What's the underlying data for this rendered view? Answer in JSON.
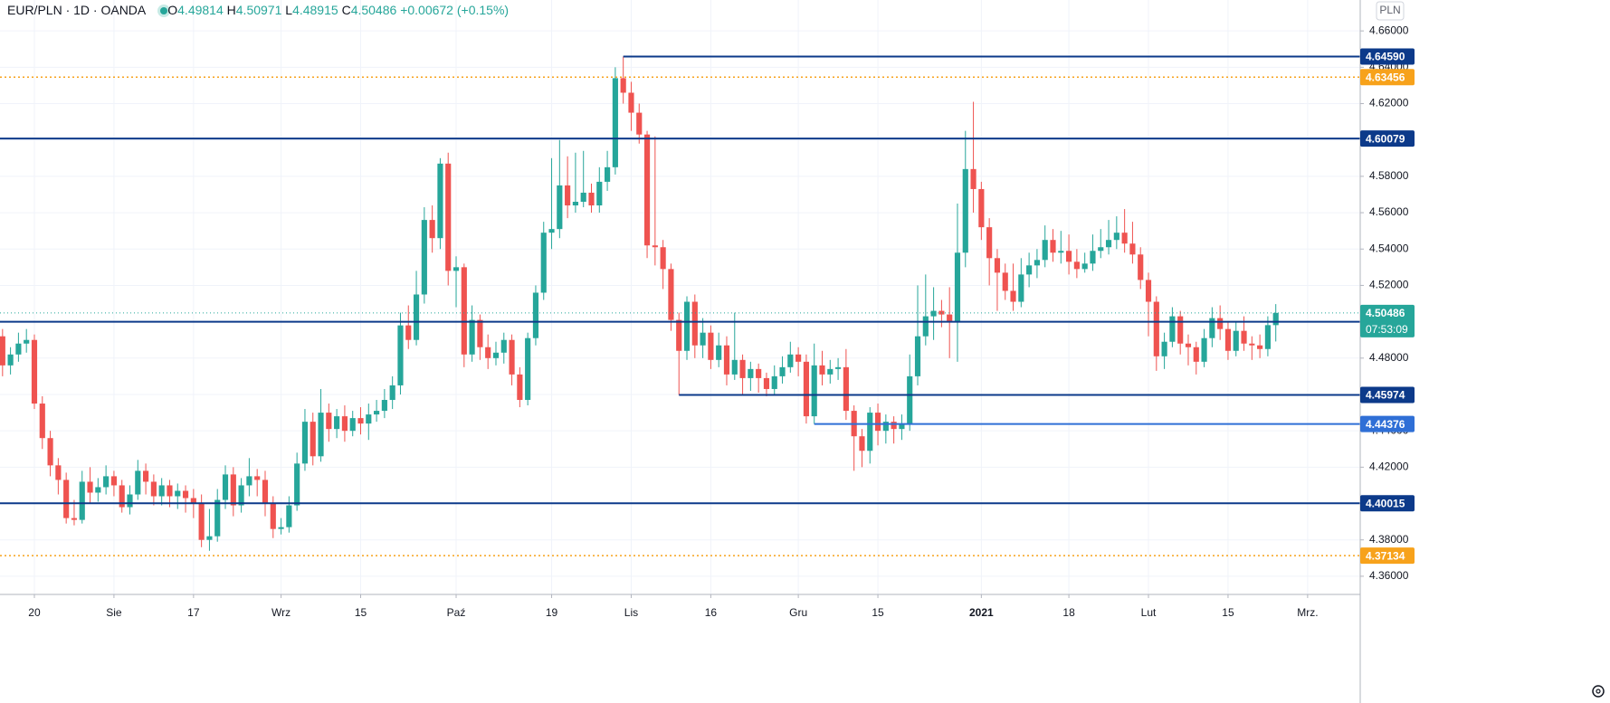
{
  "header": {
    "title": "EUR/PLN · 1D · OANDA",
    "fields": [
      {
        "key": "O",
        "value": 4.49814
      },
      {
        "key": "H",
        "value": 4.50971
      },
      {
        "key": "L",
        "value": 4.48915
      },
      {
        "key": "C",
        "value": 4.50486
      }
    ],
    "change": "+0.00672",
    "change_pct": "(+0.15%)"
  },
  "chart_data": {
    "type": "candlestick",
    "currency": "PLN",
    "up_color": "#26a69a",
    "down_color": "#ef5350",
    "grid": true,
    "xlim": [
      -0.32,
      170.61
    ],
    "ylim": [
      4.35,
      4.677
    ],
    "xticks": [
      {
        "value": 4,
        "label": "20"
      },
      {
        "value": 14,
        "label": "Sie"
      },
      {
        "value": 24,
        "label": "17"
      },
      {
        "value": 35,
        "label": "Wrz"
      },
      {
        "value": 45,
        "label": "15"
      },
      {
        "value": 57,
        "label": "Paź"
      },
      {
        "value": 69,
        "label": "19"
      },
      {
        "value": 79,
        "label": "Lis"
      },
      {
        "value": 89,
        "label": "16"
      },
      {
        "value": 100,
        "label": "Gru"
      },
      {
        "value": 110,
        "label": "15"
      },
      {
        "value": 123,
        "label": "2021",
        "bold": true
      },
      {
        "value": 134,
        "label": "18"
      },
      {
        "value": 144,
        "label": "Lut"
      },
      {
        "value": 154,
        "label": "15"
      },
      {
        "value": 164,
        "label": "Mrz."
      }
    ],
    "yticks": [
      {
        "value": 4.36,
        "label": "4.36000"
      },
      {
        "value": 4.38,
        "label": "4.38000"
      },
      {
        "value": 4.4,
        "label": "4.40000"
      },
      {
        "value": 4.42,
        "label": "4.42000"
      },
      {
        "value": 4.44,
        "label": "4.44000"
      },
      {
        "value": 4.46,
        "label": "4.46000"
      },
      {
        "value": 4.48,
        "label": "4.48000"
      },
      {
        "value": 4.5,
        "label": "4.50000"
      },
      {
        "value": 4.52,
        "label": "4.52000"
      },
      {
        "value": 4.54,
        "label": "4.54000"
      },
      {
        "value": 4.56,
        "label": "4.56000"
      },
      {
        "value": 4.58,
        "label": "4.58000"
      },
      {
        "value": 4.6,
        "label": "4.60000"
      },
      {
        "value": 4.62,
        "label": "4.62000"
      },
      {
        "value": 4.64,
        "label": "4.64000"
      },
      {
        "value": 4.66,
        "label": "4.66000"
      }
    ],
    "levels": [
      {
        "value": 4.6459,
        "label": "4.64590",
        "color": "#0c3a8a",
        "dash": false,
        "from": 78
      },
      {
        "value": 4.63456,
        "label": "4.63456",
        "color": "#f7a21b",
        "dash": true
      },
      {
        "value": 4.60079,
        "label": "4.60079",
        "color": "#0c3a8a",
        "dash": false
      },
      {
        "value": 4.5,
        "label": "4.50000",
        "color": "#0c3a8a",
        "dash": false
      },
      {
        "value": 4.45974,
        "label": "4.45974",
        "color": "#0c3a8a",
        "dash": false,
        "from": 85
      },
      {
        "value": 4.44376,
        "label": "4.44376",
        "color": "#2f6fd6",
        "dash": false,
        "from": 102
      },
      {
        "value": 4.40015,
        "label": "4.40015",
        "color": "#0c3a8a",
        "dash": false
      },
      {
        "value": 4.37134,
        "label": "4.37134",
        "color": "#f7a21b",
        "dash": true
      }
    ],
    "last": {
      "value": 4.50486,
      "label": "4.50486",
      "countdown": "07:53:09",
      "color": "#26a69a"
    },
    "open": [
      4.492,
      4.476,
      4.482,
      4.488,
      4.49,
      4.455,
      4.436,
      4.421,
      4.413,
      4.392,
      4.391,
      4.412,
      4.406,
      4.409,
      4.415,
      4.41,
      4.398,
      4.405,
      4.418,
      4.412,
      4.404,
      4.41,
      4.404,
      4.407,
      4.403,
      4.4,
      4.38,
      4.382,
      4.402,
      4.416,
      4.399,
      4.41,
      4.415,
      4.413,
      4.4,
      4.386,
      4.387,
      4.399,
      4.422,
      4.445,
      4.426,
      4.45,
      4.441,
      4.448,
      4.44,
      4.447,
      4.444,
      4.449,
      4.451,
      4.457,
      4.465,
      4.498,
      4.49,
      4.515,
      4.556,
      4.546,
      4.587,
      4.528,
      4.53,
      4.482,
      4.501,
      4.486,
      4.48,
      4.483,
      4.49,
      4.471,
      4.457,
      4.491,
      4.516,
      4.549,
      4.551,
      4.575,
      4.564,
      4.566,
      4.571,
      4.564,
      4.577,
      4.585,
      4.634,
      4.626,
      4.615,
      4.603,
      4.542,
      4.541,
      4.529,
      4.501,
      4.484,
      4.511,
      4.487,
      4.494,
      4.479,
      4.487,
      4.471,
      4.479,
      4.469,
      4.474,
      4.469,
      4.463,
      4.47,
      4.475,
      4.482,
      4.478,
      4.448,
      4.476,
      4.471,
      4.474,
      4.475,
      4.451,
      4.437,
      4.429,
      4.45,
      4.44,
      4.445,
      4.441,
      4.444,
      4.47,
      4.492,
      4.503,
      4.506,
      4.504,
      4.5,
      4.538,
      4.584,
      4.573,
      4.552,
      4.535,
      4.527,
      4.517,
      4.511,
      4.526,
      4.531,
      4.534,
      4.545,
      4.538,
      4.539,
      4.533,
      4.529,
      4.532,
      4.539,
      4.541,
      4.545,
      4.549,
      4.543,
      4.537,
      4.523,
      4.511,
      4.481,
      4.489,
      4.503,
      4.488,
      4.486,
      4.478,
      4.491,
      4.502,
      4.496,
      4.484,
      4.495,
      4.488,
      4.487,
      4.485,
      4.49814
    ],
    "high": [
      4.496,
      4.486,
      4.494,
      4.496,
      4.493,
      4.459,
      4.44,
      4.425,
      4.417,
      4.402,
      4.418,
      4.42,
      4.414,
      4.421,
      4.418,
      4.413,
      4.41,
      4.424,
      4.422,
      4.416,
      4.414,
      4.413,
      4.411,
      4.41,
      4.408,
      4.405,
      4.397,
      4.408,
      4.421,
      4.42,
      4.414,
      4.425,
      4.419,
      4.418,
      4.404,
      4.392,
      4.404,
      4.428,
      4.452,
      4.45,
      4.463,
      4.455,
      4.452,
      4.454,
      4.451,
      4.453,
      4.455,
      4.457,
      4.463,
      4.47,
      4.505,
      4.509,
      4.528,
      4.563,
      4.564,
      4.59,
      4.593,
      4.536,
      4.532,
      4.509,
      4.504,
      4.493,
      4.489,
      4.494,
      4.493,
      4.475,
      4.494,
      4.52,
      4.555,
      4.59,
      4.6,
      4.591,
      4.593,
      4.594,
      4.576,
      4.585,
      4.594,
      4.64,
      4.6459,
      4.632,
      4.62,
      4.605,
      4.602,
      4.545,
      4.532,
      4.505,
      4.514,
      4.515,
      4.502,
      4.498,
      4.494,
      4.492,
      4.505,
      4.482,
      4.478,
      4.477,
      4.472,
      4.476,
      4.481,
      4.489,
      4.486,
      4.482,
      4.488,
      4.484,
      4.479,
      4.48,
      4.485,
      4.454,
      4.441,
      4.453,
      4.455,
      4.449,
      4.448,
      4.449,
      4.482,
      4.52,
      4.526,
      4.519,
      4.512,
      4.519,
      4.565,
      4.605,
      4.621,
      4.577,
      4.557,
      4.54,
      4.532,
      4.532,
      4.535,
      4.538,
      4.54,
      4.553,
      4.551,
      4.55,
      4.548,
      4.54,
      4.538,
      4.548,
      4.551,
      4.556,
      4.558,
      4.562,
      4.555,
      4.541,
      4.527,
      4.514,
      4.494,
      4.508,
      4.506,
      4.493,
      4.489,
      4.496,
      4.508,
      4.509,
      4.5,
      4.5,
      4.503,
      4.492,
      4.493,
      4.503,
      4.50971
    ],
    "low": [
      4.47,
      4.471,
      4.478,
      4.483,
      4.452,
      4.43,
      4.415,
      4.405,
      4.389,
      4.388,
      4.389,
      4.4,
      4.401,
      4.405,
      4.404,
      4.395,
      4.394,
      4.402,
      4.405,
      4.399,
      4.399,
      4.398,
      4.397,
      4.395,
      4.392,
      4.376,
      4.374,
      4.379,
      4.397,
      4.393,
      4.395,
      4.404,
      4.404,
      4.393,
      4.381,
      4.383,
      4.384,
      4.396,
      4.418,
      4.421,
      4.423,
      4.434,
      4.436,
      4.434,
      4.437,
      4.438,
      4.435,
      4.445,
      4.447,
      4.452,
      4.46,
      4.485,
      4.487,
      4.51,
      4.538,
      4.54,
      4.52,
      4.508,
      4.475,
      4.478,
      4.479,
      4.474,
      4.476,
      4.477,
      4.465,
      4.453,
      4.454,
      4.487,
      4.512,
      4.54,
      4.546,
      4.557,
      4.56,
      4.563,
      4.56,
      4.56,
      4.572,
      4.581,
      4.62,
      4.605,
      4.598,
      4.535,
      4.531,
      4.518,
      4.495,
      4.45974,
      4.479,
      4.48,
      4.48,
      4.474,
      4.475,
      4.465,
      4.468,
      4.46,
      4.462,
      4.461,
      4.459,
      4.46,
      4.466,
      4.472,
      4.47,
      4.444,
      4.44376,
      4.465,
      4.466,
      4.468,
      4.446,
      4.418,
      4.42,
      4.422,
      4.432,
      4.433,
      4.433,
      4.435,
      4.44,
      4.465,
      4.487,
      4.49,
      4.497,
      4.48,
      4.478,
      4.53,
      4.56,
      4.545,
      4.52,
      4.506,
      4.512,
      4.506,
      4.508,
      4.519,
      4.524,
      4.53,
      4.533,
      4.532,
      4.526,
      4.524,
      4.527,
      4.528,
      4.535,
      4.537,
      4.54,
      4.538,
      4.532,
      4.518,
      4.492,
      4.473,
      4.474,
      4.486,
      4.482,
      4.476,
      4.471,
      4.475,
      4.486,
      4.49,
      4.479,
      4.481,
      4.484,
      4.479,
      4.48,
      4.481,
      4.48915
    ],
    "close": [
      4.476,
      4.482,
      4.488,
      4.49,
      4.455,
      4.436,
      4.421,
      4.413,
      4.392,
      4.391,
      4.412,
      4.406,
      4.409,
      4.415,
      4.41,
      4.398,
      4.405,
      4.418,
      4.412,
      4.404,
      4.41,
      4.404,
      4.407,
      4.403,
      4.4,
      4.38,
      4.382,
      4.402,
      4.416,
      4.399,
      4.41,
      4.415,
      4.413,
      4.4,
      4.386,
      4.387,
      4.399,
      4.422,
      4.445,
      4.426,
      4.45,
      4.441,
      4.448,
      4.44,
      4.447,
      4.444,
      4.449,
      4.451,
      4.457,
      4.465,
      4.498,
      4.49,
      4.515,
      4.556,
      4.546,
      4.587,
      4.528,
      4.53,
      4.482,
      4.501,
      4.486,
      4.48,
      4.483,
      4.49,
      4.471,
      4.457,
      4.491,
      4.516,
      4.549,
      4.551,
      4.575,
      4.564,
      4.566,
      4.571,
      4.564,
      4.577,
      4.585,
      4.634,
      4.626,
      4.615,
      4.603,
      4.542,
      4.541,
      4.529,
      4.501,
      4.484,
      4.511,
      4.487,
      4.494,
      4.479,
      4.487,
      4.471,
      4.479,
      4.469,
      4.474,
      4.469,
      4.463,
      4.47,
      4.475,
      4.482,
      4.478,
      4.448,
      4.476,
      4.471,
      4.474,
      4.475,
      4.451,
      4.437,
      4.429,
      4.45,
      4.44,
      4.445,
      4.441,
      4.444,
      4.47,
      4.492,
      4.503,
      4.506,
      4.504,
      4.5,
      4.538,
      4.584,
      4.573,
      4.552,
      4.535,
      4.527,
      4.517,
      4.511,
      4.526,
      4.531,
      4.534,
      4.545,
      4.538,
      4.539,
      4.533,
      4.529,
      4.532,
      4.539,
      4.541,
      4.545,
      4.549,
      4.543,
      4.537,
      4.523,
      4.511,
      4.481,
      4.489,
      4.503,
      4.488,
      4.486,
      4.478,
      4.491,
      4.502,
      4.496,
      4.484,
      4.495,
      4.488,
      4.487,
      4.485,
      4.49814,
      4.50486
    ]
  }
}
